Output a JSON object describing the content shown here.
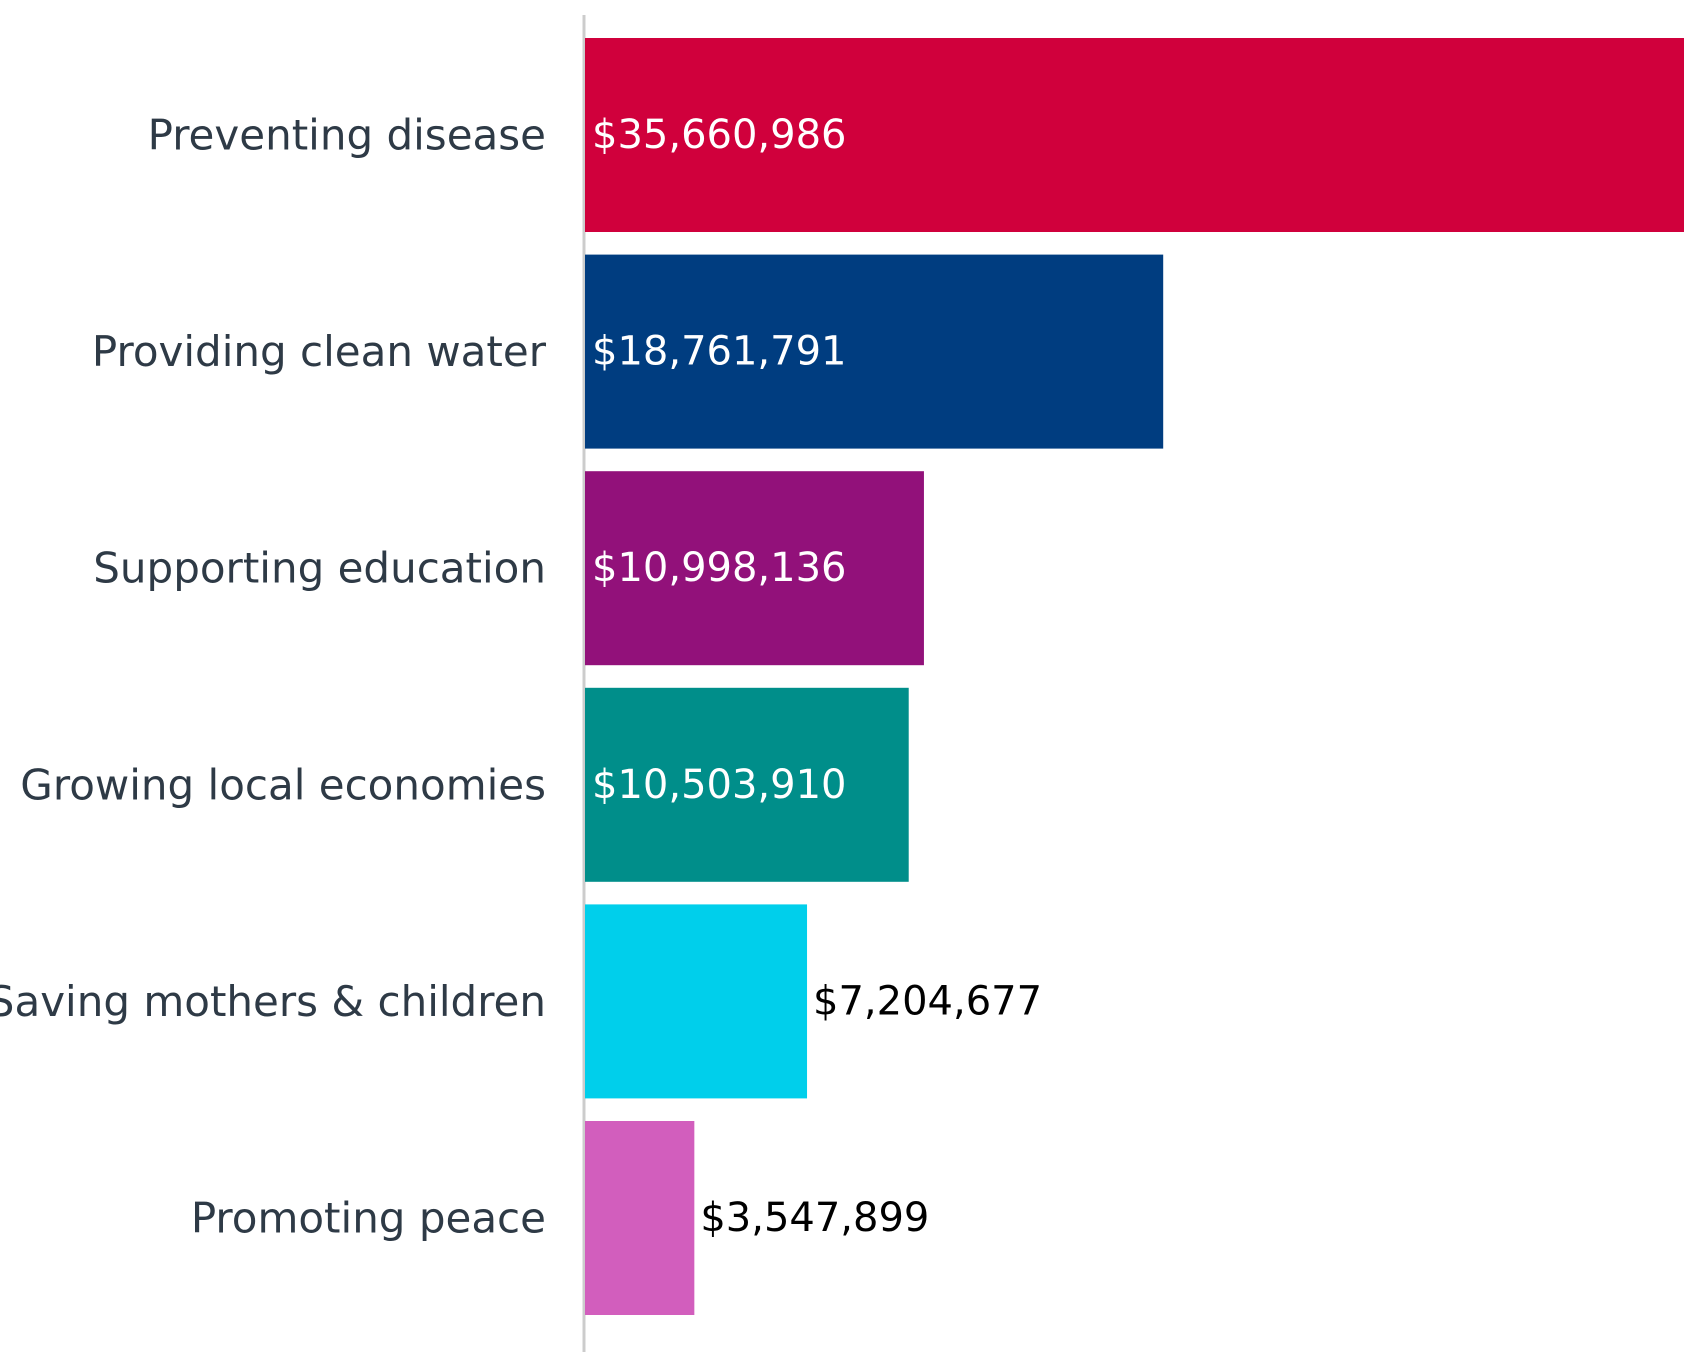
{
  "chart_data": {
    "type": "bar",
    "orientation": "horizontal",
    "title": "",
    "xlabel": "",
    "ylabel": "",
    "grid": false,
    "xlim": [
      0,
      35660986
    ],
    "categories": [
      "Preventing disease",
      "Providing clean water",
      "Supporting education",
      "Growing local economies",
      "Saving mothers & children",
      "Promoting peace"
    ],
    "values": [
      35660986,
      18761791,
      10998136,
      10503910,
      7204677,
      3547899
    ],
    "value_labels": [
      "$35,660,986",
      "$18,761,791",
      "$10,998,136",
      "$10,503,910",
      "$7,204,677",
      "$3,547,899"
    ],
    "label_inside": [
      true,
      true,
      true,
      true,
      false,
      false
    ],
    "colors": [
      "#d0003c",
      "#003d80",
      "#92117a",
      "#008e8a",
      "#00cfeb",
      "#d25ebd"
    ],
    "axis_color": "#cccccc",
    "category_label_color": "#2e3a46",
    "inside_label_color": "#ffffff",
    "outside_label_color": "#000000"
  }
}
